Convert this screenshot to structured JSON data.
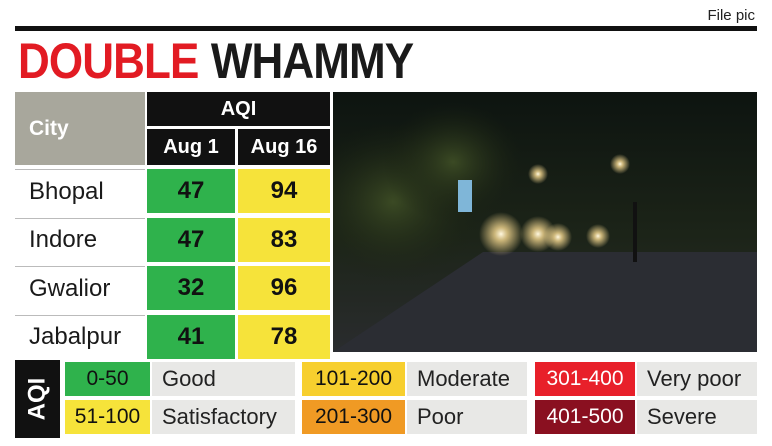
{
  "source_note": "File pic",
  "title": {
    "part1": "DOUBLE",
    "part2": "WHAMMY"
  },
  "table": {
    "city_header": "City",
    "aqi_header": "AQI",
    "date_headers": [
      "Aug 1",
      "Aug 16"
    ],
    "rows": [
      [
        "Bhopal",
        47,
        94
      ],
      [
        "Indore",
        47,
        83
      ],
      [
        "Gwalior",
        32,
        96
      ],
      [
        "Jabalpur",
        41,
        78
      ]
    ]
  },
  "legend": {
    "label": "AQI",
    "items": [
      {
        "range": "0-50",
        "category": "Good",
        "color": "#2fb24c"
      },
      {
        "range": "51-100",
        "category": "Satisfactory",
        "color": "#f6e33a"
      },
      {
        "range": "101-200",
        "category": "Moderate",
        "color": "#f7cf2e"
      },
      {
        "range": "201-300",
        "category": "Poor",
        "color": "#f09a24"
      },
      {
        "range": "301-400",
        "category": "Very poor",
        "color": "#e8202a"
      },
      {
        "range": "401-500",
        "category": "Severe",
        "color": "#8a1020"
      }
    ]
  }
}
